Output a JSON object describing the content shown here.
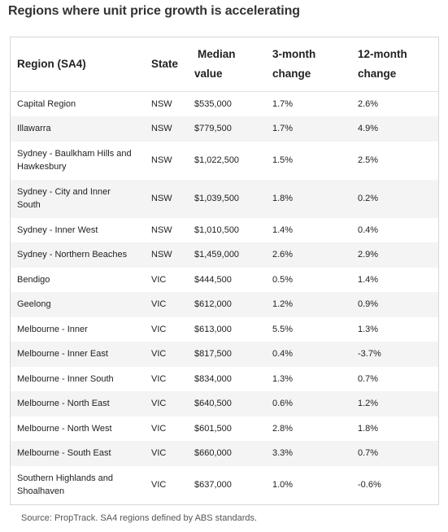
{
  "title": "Regions where unit price growth is accelerating",
  "table": {
    "headers": {
      "region": "Region (SA4)",
      "state": "State",
      "median_line1": "Median",
      "median_line2": "value",
      "three_month_line1": "3-month",
      "three_month_line2": "change",
      "twelve_month_line1": "12-month",
      "twelve_month_line2": "change"
    },
    "rows": [
      {
        "region_line1": "Capital Region",
        "region_line2": "",
        "state": "NSW",
        "median": "$535,000",
        "three_month": "1.7%",
        "twelve_month": "2.6%"
      },
      {
        "region_line1": "Illawarra",
        "region_line2": "",
        "state": "NSW",
        "median": "$779,500",
        "three_month": "1.7%",
        "twelve_month": "4.9%"
      },
      {
        "region_line1": "Sydney - Baulkham Hills and",
        "region_line2": "Hawkesbury",
        "state": "NSW",
        "median": "$1,022,500",
        "three_month": "1.5%",
        "twelve_month": "2.5%"
      },
      {
        "region_line1": "Sydney - City and Inner",
        "region_line2": "South",
        "state": "NSW",
        "median": "$1,039,500",
        "three_month": "1.8%",
        "twelve_month": "0.2%"
      },
      {
        "region_line1": "Sydney - Inner West",
        "region_line2": "",
        "state": "NSW",
        "median": "$1,010,500",
        "three_month": "1.4%",
        "twelve_month": "0.4%"
      },
      {
        "region_line1": "Sydney - Northern Beaches",
        "region_line2": "",
        "state": "NSW",
        "median": "$1,459,000",
        "three_month": "2.6%",
        "twelve_month": "2.9%"
      },
      {
        "region_line1": "Bendigo",
        "region_line2": "",
        "state": "VIC",
        "median": "$444,500",
        "three_month": "0.5%",
        "twelve_month": "1.4%"
      },
      {
        "region_line1": "Geelong",
        "region_line2": "",
        "state": "VIC",
        "median": "$612,000",
        "three_month": "1.2%",
        "twelve_month": "0.9%"
      },
      {
        "region_line1": "Melbourne - Inner",
        "region_line2": "",
        "state": "VIC",
        "median": "$613,000",
        "three_month": "5.5%",
        "twelve_month": "1.3%"
      },
      {
        "region_line1": "Melbourne - Inner East",
        "region_line2": "",
        "state": "VIC",
        "median": "$817,500",
        "three_month": "0.4%",
        "twelve_month": "-3.7%"
      },
      {
        "region_line1": "Melbourne - Inner South",
        "region_line2": "",
        "state": "VIC",
        "median": "$834,000",
        "three_month": "1.3%",
        "twelve_month": "0.7%"
      },
      {
        "region_line1": "Melbourne - North East",
        "region_line2": "",
        "state": "VIC",
        "median": "$640,500",
        "three_month": "0.6%",
        "twelve_month": "1.2%"
      },
      {
        "region_line1": "Melbourne - North West",
        "region_line2": "",
        "state": "VIC",
        "median": "$601,500",
        "three_month": "2.8%",
        "twelve_month": "1.8%"
      },
      {
        "region_line1": "Melbourne - South East",
        "region_line2": "",
        "state": "VIC",
        "median": "$660,000",
        "three_month": "3.3%",
        "twelve_month": "0.7%"
      },
      {
        "region_line1": "Southern Highlands and",
        "region_line2": "Shoalhaven",
        "state": "VIC",
        "median": "$637,000",
        "three_month": "1.0%",
        "twelve_month": "-0.6%"
      }
    ]
  },
  "source": "Source: PropTrack. SA4 regions defined by ABS standards."
}
